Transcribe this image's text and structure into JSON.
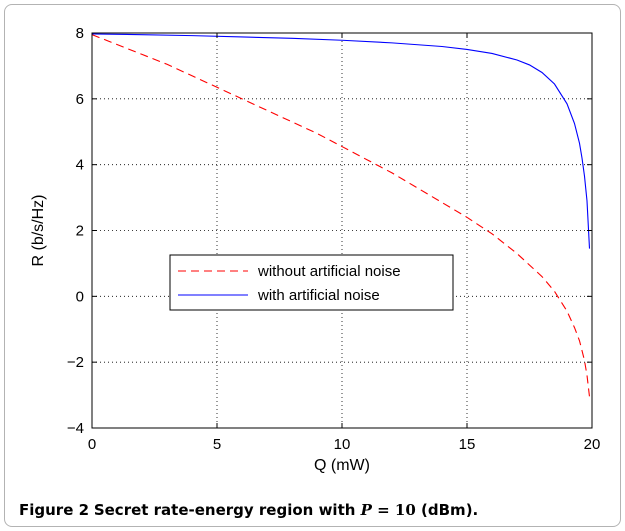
{
  "chart_data": {
    "type": "line",
    "xlabel": "Q (mW)",
    "ylabel": "R (b/s/Hz)",
    "xlim": [
      0,
      20
    ],
    "ylim": [
      -4,
      8
    ],
    "xticks": [
      0,
      5,
      10,
      15,
      20
    ],
    "yticks": [
      -4,
      -2,
      0,
      2,
      4,
      6,
      8
    ],
    "grid": true,
    "legend_position": "center",
    "series": [
      {
        "name": "without artificial noise",
        "color": "#ff0000",
        "style": "dashed",
        "x": [
          0,
          1,
          2,
          3,
          4,
          5,
          6,
          7,
          8,
          9,
          10,
          11,
          12,
          13,
          14,
          15,
          16,
          17,
          18,
          18.5,
          19,
          19.3,
          19.5,
          19.7,
          19.8,
          19.9
        ],
        "y": [
          7.95,
          7.65,
          7.35,
          7.05,
          6.7,
          6.35,
          6.0,
          5.65,
          5.3,
          4.95,
          4.55,
          4.15,
          3.75,
          3.3,
          2.85,
          2.4,
          1.9,
          1.3,
          0.6,
          0.15,
          -0.45,
          -0.95,
          -1.35,
          -1.95,
          -2.4,
          -3.05
        ]
      },
      {
        "name": "with artificial noise",
        "color": "#0000ff",
        "style": "solid",
        "x": [
          0,
          2,
          4,
          6,
          8,
          10,
          12,
          14,
          15,
          16,
          17,
          17.5,
          18,
          18.5,
          19,
          19.3,
          19.5,
          19.6,
          19.7,
          19.8,
          19.9
        ],
        "y": [
          7.97,
          7.95,
          7.92,
          7.88,
          7.84,
          7.78,
          7.7,
          7.59,
          7.5,
          7.38,
          7.18,
          7.03,
          6.8,
          6.45,
          5.85,
          5.25,
          4.65,
          4.2,
          3.65,
          2.9,
          1.45
        ]
      }
    ]
  },
  "caption": {
    "label": "Figure 2",
    "text_before": "Secret rate-energy region with ",
    "math_var": "P",
    "math_rest": " = 10",
    "text_after": " (dBm)."
  }
}
